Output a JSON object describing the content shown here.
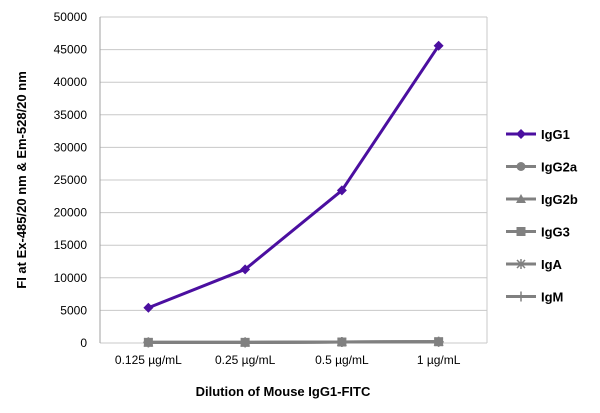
{
  "chart_data": {
    "type": "line",
    "title": "",
    "xlabel": "Dilution of Mouse IgG1-FITC",
    "ylabel": "FI at Ex-485/20 nm & Em-528/20 nm",
    "categories": [
      "0.125 µg/mL",
      "0.25 µg/mL",
      "0.5 µg/mL",
      "1 µg/mL"
    ],
    "ylim": [
      0,
      50000
    ],
    "yticks": [
      "0",
      "5000",
      "10000",
      "15000",
      "20000",
      "25000",
      "30000",
      "35000",
      "40000",
      "45000",
      "50000"
    ],
    "grid": true,
    "legend_position": "right",
    "series": [
      {
        "name": "IgG1",
        "values": [
          5400,
          11300,
          23400,
          45600
        ],
        "color": "#4b0fa0",
        "marker": "diamond"
      },
      {
        "name": "IgG2a",
        "values": [
          100,
          100,
          150,
          200
        ],
        "color": "#808080",
        "marker": "circle"
      },
      {
        "name": "IgG2b",
        "values": [
          100,
          100,
          150,
          200
        ],
        "color": "#808080",
        "marker": "triangle"
      },
      {
        "name": "IgG3",
        "values": [
          100,
          100,
          150,
          200
        ],
        "color": "#808080",
        "marker": "square"
      },
      {
        "name": "IgA",
        "values": [
          100,
          100,
          150,
          200
        ],
        "color": "#808080",
        "marker": "asterisk"
      },
      {
        "name": "IgM",
        "values": [
          100,
          100,
          150,
          200
        ],
        "color": "#808080",
        "marker": "plus"
      }
    ]
  }
}
